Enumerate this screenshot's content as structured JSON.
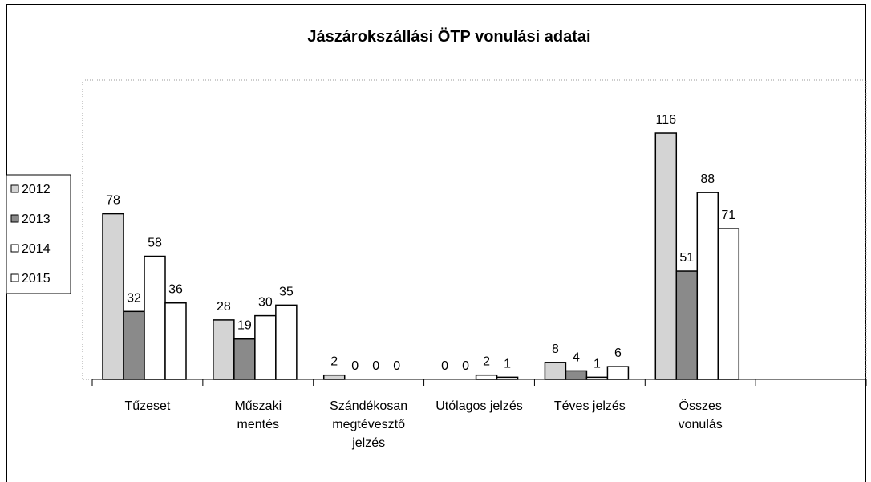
{
  "chart_data": {
    "type": "bar",
    "title": "Jászárokszállási ÖTP vonulási adatai",
    "categories": [
      "Tűzeset",
      "Műszaki mentés",
      "Szándékosan megtévesztő jelzés",
      "Utólagos jelzés",
      "Téves jelzés",
      "Összes vonulás",
      null
    ],
    "series": [
      {
        "name": "2012",
        "color": "#d4d4d4",
        "values": [
          78,
          28,
          2,
          0,
          8,
          116,
          null
        ]
      },
      {
        "name": "2013",
        "color": "#8a8a8a",
        "values": [
          32,
          19,
          0,
          0,
          4,
          51,
          null
        ]
      },
      {
        "name": "2014",
        "color": "#ffffff",
        "values": [
          58,
          30,
          0,
          2,
          1,
          88,
          null
        ]
      },
      {
        "name": "2015",
        "color": "#ffffff",
        "values": [
          36,
          35,
          0,
          1,
          6,
          71,
          null
        ]
      }
    ],
    "legend": "left"
  }
}
